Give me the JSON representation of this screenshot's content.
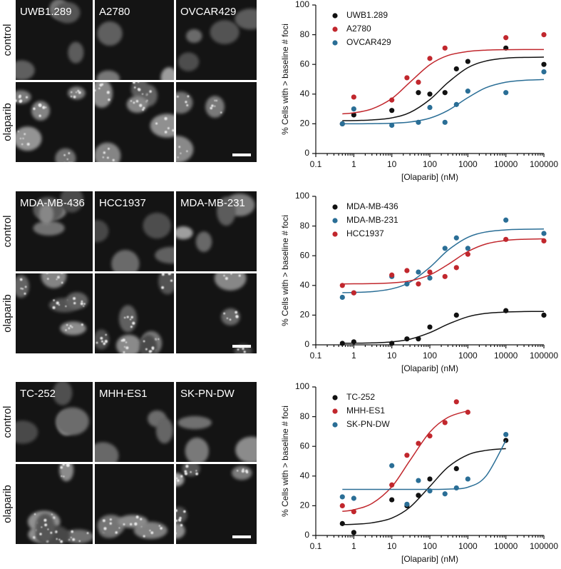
{
  "image_panels": [
    {
      "cell_lines": [
        "UWB1.289",
        "A2780",
        "OVCAR429"
      ],
      "row_labels": [
        "control",
        "olaparib"
      ]
    },
    {
      "cell_lines": [
        "MDA-MB-436",
        "HCC1937",
        "MDA-MB-231"
      ],
      "row_labels": [
        "control",
        "olaparib"
      ]
    },
    {
      "cell_lines": [
        "TC-252",
        "MHH-ES1",
        "SK-PN-DW"
      ],
      "row_labels": [
        "control",
        "olaparib"
      ]
    }
  ],
  "chart_data": [
    {
      "type": "scatter",
      "x_label": "[Olaparib] (nM)",
      "y_label": "% Cells with > baseline # foci",
      "xscale": "log",
      "xlim": [
        0.1,
        100000
      ],
      "xticks": [
        0.1,
        1,
        10,
        100,
        1000,
        10000,
        100000
      ],
      "ylim": [
        0,
        100
      ],
      "yticks": [
        0,
        20,
        40,
        60,
        80,
        100
      ],
      "series": [
        {
          "name": "UWB1.289",
          "color": "#111111",
          "x": [
            0.5,
            1,
            10,
            50,
            100,
            250,
            500,
            1000,
            10000,
            100000
          ],
          "values": [
            20,
            26,
            29,
            41,
            40,
            41,
            57,
            62,
            71,
            60
          ],
          "fit_x": [
            0.5,
            1,
            3,
            10,
            30,
            100,
            300,
            1000,
            3000,
            10000,
            30000,
            100000
          ],
          "fit_values": [
            22.1,
            22.2,
            22.6,
            24.0,
            27.6,
            36.3,
            47.8,
            57.8,
            62.3,
            64.2,
            64.7,
            64.9
          ]
        },
        {
          "name": "A2780",
          "color": "#c1272d",
          "x": [
            1,
            10,
            25,
            50,
            100,
            250,
            10000,
            100000
          ],
          "values": [
            38,
            36,
            51,
            48,
            64,
            71,
            78,
            80
          ],
          "fit_x": [
            0.5,
            1,
            3,
            10,
            30,
            100,
            300,
            1000,
            3000,
            10000,
            30000,
            100000
          ],
          "fit_values": [
            26.7,
            27.4,
            30.0,
            37.0,
            48.0,
            59.8,
            66.0,
            68.7,
            69.6,
            69.9,
            70,
            70
          ]
        },
        {
          "name": "OVCAR429",
          "color": "#2a6e96",
          "x": [
            0.5,
            1,
            10,
            50,
            100,
            250,
            500,
            1000,
            10000,
            100000
          ],
          "values": [
            20,
            30,
            19,
            21,
            31,
            21,
            33,
            42,
            41,
            55
          ],
          "fit_x": [
            0.5,
            1,
            3,
            10,
            30,
            100,
            300,
            1000,
            3000,
            10000,
            30000,
            100000
          ],
          "fit_values": [
            20.0,
            20.0,
            20.1,
            20.4,
            21.2,
            23.8,
            29.0,
            37.6,
            44.3,
            48.0,
            49.3,
            49.8
          ]
        }
      ]
    },
    {
      "type": "scatter",
      "x_label": "[Olaparib] (nM)",
      "y_label": "% Cells with > baseline # foci",
      "xscale": "log",
      "xlim": [
        0.1,
        100000
      ],
      "xticks": [
        0.1,
        1,
        10,
        100,
        1000,
        10000,
        100000
      ],
      "ylim": [
        0,
        100
      ],
      "yticks": [
        0,
        20,
        40,
        60,
        80,
        100
      ],
      "series": [
        {
          "name": "MDA-MB-436",
          "color": "#111111",
          "x": [
            0.5,
            1,
            10,
            25,
            50,
            100,
            500,
            10000,
            100000
          ],
          "values": [
            1,
            2,
            1,
            4,
            4,
            12,
            20,
            23,
            20
          ],
          "fit_x": [
            0.5,
            1,
            3,
            10,
            30,
            100,
            300,
            1000,
            3000,
            10000,
            30000,
            100000
          ],
          "fit_values": [
            1.1,
            1.1,
            1.3,
            2.0,
            3.8,
            8.2,
            13.9,
            18.9,
            21.2,
            22.1,
            22.4,
            22.5
          ]
        },
        {
          "name": "MDA-MB-231",
          "color": "#2a6e96",
          "x": [
            0.5,
            1,
            10,
            25,
            50,
            100,
            250,
            500,
            1000,
            10000,
            100000
          ],
          "values": [
            32,
            35,
            46,
            41,
            49,
            45,
            65,
            72,
            65,
            84,
            75
          ],
          "fit_x": [
            0.5,
            1,
            3,
            10,
            30,
            100,
            300,
            1000,
            3000,
            10000,
            30000,
            100000
          ],
          "fit_values": [
            35.1,
            35.3,
            35.8,
            37.7,
            42.2,
            52.2,
            63.7,
            72.4,
            76.0,
            77.4,
            77.8,
            78
          ]
        },
        {
          "name": "HCC1937",
          "color": "#c1272d",
          "x": [
            0.5,
            1,
            10,
            25,
            50,
            100,
            250,
            500,
            1000,
            10000,
            100000
          ],
          "values": [
            40,
            35,
            47,
            50,
            41,
            49,
            46,
            52,
            61,
            71,
            70
          ],
          "fit_x": [
            0.5,
            1,
            3,
            10,
            30,
            100,
            300,
            1000,
            3000,
            10000,
            30000,
            100000
          ],
          "fit_values": [
            41.0,
            41.1,
            41.2,
            41.7,
            43.1,
            47.1,
            54.1,
            62.8,
            67.9,
            70.3,
            71.1,
            71.4
          ]
        }
      ]
    },
    {
      "type": "scatter",
      "x_label": "[Olaparib] (nM)",
      "y_label": "% Cells with > baseline # foci",
      "xscale": "log",
      "xlim": [
        0.1,
        100000
      ],
      "xticks": [
        0.1,
        1,
        10,
        100,
        1000,
        10000,
        100000
      ],
      "ylim": [
        0,
        100
      ],
      "yticks": [
        0,
        20,
        40,
        60,
        80,
        100
      ],
      "series": [
        {
          "name": "TC-252",
          "color": "#111111",
          "x": [
            0.5,
            1,
            10,
            25,
            50,
            100,
            500,
            10000
          ],
          "values": [
            8,
            2,
            24,
            20,
            27,
            38,
            45,
            64
          ],
          "fit_x": [
            0.5,
            1,
            3,
            10,
            30,
            100,
            300,
            1000,
            3000,
            10000
          ],
          "fit_values": [
            7.3,
            7.5,
            8.5,
            11.7,
            19.0,
            33.0,
            46.0,
            54.3,
            57.3,
            58.5
          ]
        },
        {
          "name": "MHH-ES1",
          "color": "#c1272d",
          "x": [
            0.5,
            1,
            10,
            25,
            50,
            100,
            250,
            500,
            1000
          ],
          "values": [
            20,
            16,
            34,
            54,
            62,
            67,
            76,
            90,
            83
          ],
          "fit_x": [
            0.5,
            1,
            3,
            10,
            30,
            100,
            300,
            1000
          ],
          "fit_values": [
            16.2,
            17.3,
            21.5,
            32.8,
            50.5,
            69.6,
            79.5,
            83.9
          ]
        },
        {
          "name": "SK-PN-DW",
          "color": "#2a6e96",
          "x": [
            0.5,
            1,
            10,
            25,
            50,
            100,
            250,
            500,
            1000,
            10000
          ],
          "values": [
            26,
            25,
            47,
            21,
            37,
            30,
            28,
            32,
            38,
            68
          ],
          "fit_x": [
            0.5,
            1,
            3,
            10,
            30,
            100,
            300,
            1000,
            3000,
            10000
          ],
          "fit_values": [
            31,
            31,
            31,
            31,
            31,
            31,
            31.2,
            32.5,
            40,
            64
          ]
        }
      ]
    }
  ]
}
